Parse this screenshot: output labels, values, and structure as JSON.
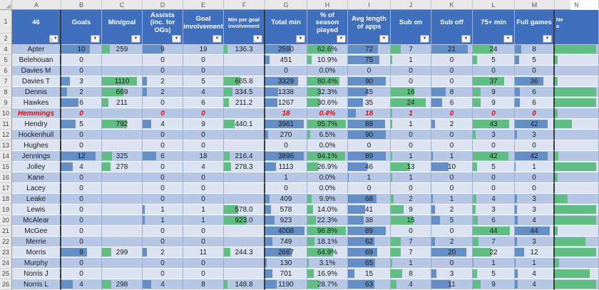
{
  "sheet": {
    "icons": {
      "dropdown": "▼",
      "sort_arrow": "↓"
    },
    "colors": {
      "header_blue": "#3F6FBD",
      "band_dark": "#B6C7E6",
      "band_light": "#DBE3F3",
      "bar_blue": "#638EC6",
      "bar_green": "#5FBF82",
      "alert_red": "#FF0000"
    },
    "header_rows": [
      {
        "num": "1",
        "h": 33
      },
      {
        "num": "2",
        "h": 15
      }
    ],
    "columns": [
      {
        "letter": "A",
        "label": "46",
        "width": 69,
        "thick": true,
        "button": true,
        "sorted": true
      },
      {
        "letter": "B",
        "label": "Goals",
        "width": 57,
        "bar": "blue",
        "max": 12,
        "factor": 85,
        "button": true
      },
      {
        "letter": "C",
        "label": "Min/goal",
        "width": 57,
        "bar": "green",
        "max": 1110,
        "factor": 88,
        "button": true
      },
      {
        "letter": "D",
        "label": "Assists (inc. for OGs)",
        "width": 57,
        "bar": "blue",
        "max": 18,
        "factor": 100,
        "button": true
      },
      {
        "letter": "E",
        "label": "Goal involvement",
        "width": 57,
        "button": true
      },
      {
        "letter": "F",
        "label": "Min per goal involvement",
        "width": 58,
        "bar": "green",
        "max": 1600,
        "factor": 100,
        "small": true,
        "thick": true,
        "button": true
      },
      {
        "letter": "G",
        "label": "Total min",
        "width": 59,
        "bar": "blue",
        "max": 4008,
        "factor": 95,
        "button": true
      },
      {
        "letter": "H",
        "label": "% of season played",
        "width": 57,
        "bar": "green",
        "max": 100,
        "factor": 100,
        "button": true
      },
      {
        "letter": "I",
        "label": "Avg length of apps",
        "width": 60,
        "bar": "blue",
        "max": 90,
        "factor": 90,
        "button": true
      },
      {
        "letter": "J",
        "label": "Sub on",
        "width": 57,
        "bar": "green",
        "max": 24,
        "factor": 88,
        "button": true
      },
      {
        "letter": "K",
        "label": "Sub off",
        "width": 58,
        "bar": "blue",
        "max": 21,
        "factor": 90,
        "button": true
      },
      {
        "letter": "L",
        "label": "75+ min",
        "width": 59,
        "bar": "green",
        "max": 44,
        "factor": 90,
        "button": true
      },
      {
        "letter": "M",
        "label": "Full games",
        "width": 56,
        "bar": "blue",
        "max": 44,
        "factor": 90,
        "thick": true,
        "button": true
      },
      {
        "letter": "N",
        "label": "Ne\na",
        "width": 62,
        "bar": "green",
        "max": 1,
        "factor": 100,
        "small": true,
        "noText": true,
        "nclip": true
      }
    ],
    "rows": [
      {
        "num": "4",
        "name": "Apter",
        "values": {
          "B": "10",
          "C": "259",
          "D": "9",
          "E": "19",
          "F": "136.3",
          "G": "2590",
          "H": "62.6%",
          "I": "72",
          "J": "7",
          "K": "21",
          "L": "24",
          "M": "8",
          "N": 0.95
        }
      },
      {
        "num": "5",
        "name": "Belehouan",
        "values": {
          "B": "0",
          "C": "",
          "D": "0",
          "E": "0",
          "F": "",
          "G": "451",
          "H": "10.9%",
          "I": "75",
          "J": "1",
          "K": "0",
          "L": "5",
          "M": "5",
          "N": 0.07
        }
      },
      {
        "num": "6",
        "name": "Davies M",
        "values": {
          "B": "0",
          "C": "",
          "D": "0",
          "E": "0",
          "F": "",
          "G": "0",
          "H": "0.0%",
          "I": "0",
          "J": "0",
          "K": "0",
          "L": "0",
          "M": "0",
          "N": 0
        }
      },
      {
        "num": "7",
        "name": "Davies T",
        "values": {
          "B": "3",
          "C": "1110",
          "D": "2",
          "E": "5",
          "F": "665.8",
          "G": "3329",
          "H": "80.4%",
          "I": "90",
          "J": "0",
          "K": "0",
          "L": "37",
          "M": "36",
          "N": 0.07
        }
      },
      {
        "num": "8",
        "name": "Dennis",
        "values": {
          "B": "2",
          "C": "669",
          "D": "2",
          "E": "4",
          "F": "334.5",
          "G": "1338",
          "H": "32.3%",
          "I": "45",
          "J": "16",
          "K": "8",
          "L": "9",
          "M": "6",
          "N": 0.95
        }
      },
      {
        "num": "9",
        "name": "Hawkes",
        "values": {
          "B": "6",
          "C": "211",
          "D": "0",
          "E": "6",
          "F": "211.2",
          "G": "1267",
          "H": "30.6%",
          "I": "35",
          "J": "24",
          "K": "6",
          "L": "9",
          "M": "6",
          "N": 0.95
        }
      },
      {
        "num": "10",
        "name": "Hemmings",
        "alert": true,
        "values": {
          "B": "0",
          "C": "",
          "D": "0",
          "E": "0",
          "F": "",
          "G": "18",
          "H": "0.4%",
          "I": "18",
          "J": "1",
          "K": "0",
          "L": "0",
          "M": "0",
          "N": 0.07
        }
      },
      {
        "num": "11",
        "name": "Hendry",
        "values": {
          "B": "5",
          "C": "792",
          "D": "4",
          "E": "9",
          "F": "440.1",
          "G": "3961",
          "H": "95.7%",
          "I": "88",
          "J": "1",
          "K": "2",
          "L": "43",
          "M": "42",
          "N": 0.4
        }
      },
      {
        "num": "12",
        "name": "Hockenhull",
        "values": {
          "B": "0",
          "C": "",
          "D": "0",
          "E": "0",
          "F": "",
          "G": "270",
          "H": "6.5%",
          "I": "90",
          "J": "0",
          "K": "0",
          "L": "3",
          "M": "3",
          "N": 0
        }
      },
      {
        "num": "13",
        "name": "Hughes",
        "values": {
          "B": "0",
          "C": "",
          "D": "0",
          "E": "0",
          "F": "",
          "G": "0",
          "H": "0.0%",
          "I": "0",
          "J": "0",
          "K": "0",
          "L": "0",
          "M": "0",
          "N": 0
        }
      },
      {
        "num": "14",
        "name": "Jennings",
        "values": {
          "B": "12",
          "C": "325",
          "D": "6",
          "E": "18",
          "F": "216.4",
          "G": "3896",
          "H": "94.1%",
          "I": "89",
          "J": "1",
          "K": "1",
          "L": "42",
          "M": "42",
          "N": 0.08
        }
      },
      {
        "num": "15",
        "name": "Jolley",
        "values": {
          "B": "4",
          "C": "278",
          "D": "0",
          "E": "4",
          "F": "278.3",
          "G": "1113",
          "H": "26.9%",
          "I": "46",
          "J": "13",
          "K": "10",
          "L": "5",
          "M": "1",
          "N": 0.95
        }
      },
      {
        "num": "16",
        "name": "Kane",
        "values": {
          "B": "0",
          "C": "",
          "D": "0",
          "E": "0",
          "F": "",
          "G": "1",
          "H": "0.0%",
          "I": "1",
          "J": "1",
          "K": "0",
          "L": "0",
          "M": "0",
          "N": 0.07
        }
      },
      {
        "num": "17",
        "name": "Lacey",
        "values": {
          "B": "0",
          "C": "",
          "D": "0",
          "E": "0",
          "F": "",
          "G": "0",
          "H": "0.0%",
          "I": "0",
          "J": "0",
          "K": "0",
          "L": "0",
          "M": "0",
          "N": 0
        }
      },
      {
        "num": "18",
        "name": "Leake",
        "values": {
          "B": "0",
          "C": "",
          "D": "0",
          "E": "0",
          "F": "",
          "G": "409",
          "H": "9.9%",
          "I": "68",
          "J": "2",
          "K": "1",
          "L": "4",
          "M": "3",
          "N": 0.3
        }
      },
      {
        "num": "19",
        "name": "Lewis",
        "values": {
          "B": "0",
          "C": "",
          "D": "1",
          "E": "1",
          "F": "578.0",
          "G": "578",
          "H": "14.0%",
          "I": "41",
          "J": "9",
          "K": "2",
          "L": "3",
          "M": "3",
          "N": 0.95
        }
      },
      {
        "num": "20",
        "name": "McAlear",
        "values": {
          "B": "0",
          "C": "",
          "D": "1",
          "E": "1",
          "F": "923.0",
          "G": "923",
          "H": "22.3%",
          "I": "38",
          "J": "15",
          "K": "5",
          "L": "6",
          "M": "4",
          "N": 0.95
        }
      },
      {
        "num": "21",
        "name": "McGee",
        "values": {
          "B": "0",
          "C": "",
          "D": "0",
          "E": "0",
          "F": "",
          "G": "4008",
          "H": "96.8%",
          "I": "89",
          "J": "0",
          "K": "0",
          "L": "44",
          "M": "44",
          "N": 0.07
        }
      },
      {
        "num": "22",
        "name": "Merrie",
        "values": {
          "B": "0",
          "C": "",
          "D": "0",
          "E": "0",
          "F": "",
          "G": "749",
          "H": "18.1%",
          "I": "62",
          "J": "7",
          "K": "2",
          "L": "7",
          "M": "3",
          "N": 0.7
        }
      },
      {
        "num": "23",
        "name": "Morris",
        "values": {
          "B": "9",
          "C": "299",
          "D": "2",
          "E": "11",
          "F": "244.3",
          "G": "2687",
          "H": "64.9%",
          "I": "69",
          "J": "7",
          "K": "20",
          "L": "22",
          "M": "12",
          "N": 0.95
        }
      },
      {
        "num": "24",
        "name": "Murphy",
        "values": {
          "B": "0",
          "C": "",
          "D": "0",
          "E": "0",
          "F": "",
          "G": "130",
          "H": "3.1%",
          "I": "65",
          "J": "1",
          "K": "0",
          "L": "1",
          "M": "1",
          "N": 0.1
        }
      },
      {
        "num": "25",
        "name": "Norris J",
        "values": {
          "B": "0",
          "C": "",
          "D": "0",
          "E": "0",
          "F": "",
          "G": "701",
          "H": "16.9%",
          "I": "15",
          "J": "8",
          "K": "3",
          "L": "5",
          "M": "4",
          "N": 0.8
        }
      },
      {
        "num": "26",
        "name": "Norris L",
        "values": {
          "B": "4",
          "C": "298",
          "D": "4",
          "E": "8",
          "F": "148.8",
          "G": "1190",
          "H": "28.7%",
          "I": "63",
          "J": "4",
          "K": "11",
          "L": "9",
          "M": "4",
          "N": 0.95
        }
      }
    ]
  }
}
